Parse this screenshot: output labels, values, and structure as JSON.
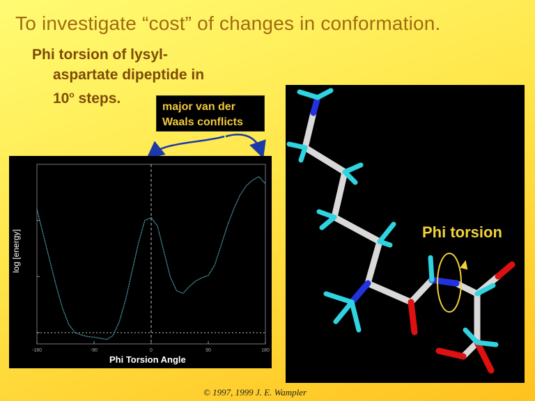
{
  "slide": {
    "title": "To investigate “cost” of changes in conformation.",
    "subtitle_line1": "Phi torsion of lysyl-",
    "subtitle_line2": "aspartate dipeptide in",
    "subtitle_line3_prefix": "10",
    "subtitle_line3_sup": "o",
    "subtitle_line3_suffix": " steps.",
    "callout_line1": "major van der",
    "callout_line2": "Waals conflicts",
    "phi_torsion_label": "Phi torsion",
    "copyright": "© 1997, 1999 J. E. Wampler"
  },
  "colors": {
    "title": "#a06b10",
    "subtitle": "#7d4b07",
    "callout_text": "#f2c83c",
    "arrow": "#1a3aa8",
    "curve": "#5ab8c8",
    "carbon": "#d9d9d9",
    "nitrogen": "#2233dd",
    "oxygen": "#dd1111",
    "hydrogen": "#2fd4e0",
    "torsion_arrow": "#f2d23c"
  },
  "chart_data": {
    "type": "line",
    "xlabel": "Phi Torsion Angle",
    "ylabel": "log [energy]",
    "x_ticks": [
      "-180",
      "-90",
      "0",
      "90",
      "180"
    ],
    "xlim": [
      -180,
      180
    ],
    "ylim": [
      0.8,
      4.0
    ],
    "series": [
      {
        "x": [
          -180,
          -170,
          -160,
          -150,
          -140,
          -130,
          -120,
          -110,
          -100,
          -90,
          -80,
          -70,
          -60,
          -50,
          -40,
          -30,
          -20,
          -10,
          0,
          10,
          20,
          30,
          40,
          50,
          60,
          70,
          80,
          90,
          100,
          110,
          120,
          130,
          140,
          150,
          160,
          170,
          180
        ],
        "values": [
          3.2,
          2.75,
          2.3,
          1.85,
          1.45,
          1.15,
          1.0,
          0.96,
          0.93,
          0.92,
          0.9,
          0.88,
          0.95,
          1.2,
          1.6,
          2.1,
          2.6,
          3.0,
          3.05,
          2.9,
          2.45,
          2.0,
          1.75,
          1.7,
          1.82,
          1.92,
          1.98,
          2.02,
          2.2,
          2.55,
          2.9,
          3.2,
          3.45,
          3.62,
          3.72,
          3.78,
          3.65
        ]
      }
    ]
  }
}
